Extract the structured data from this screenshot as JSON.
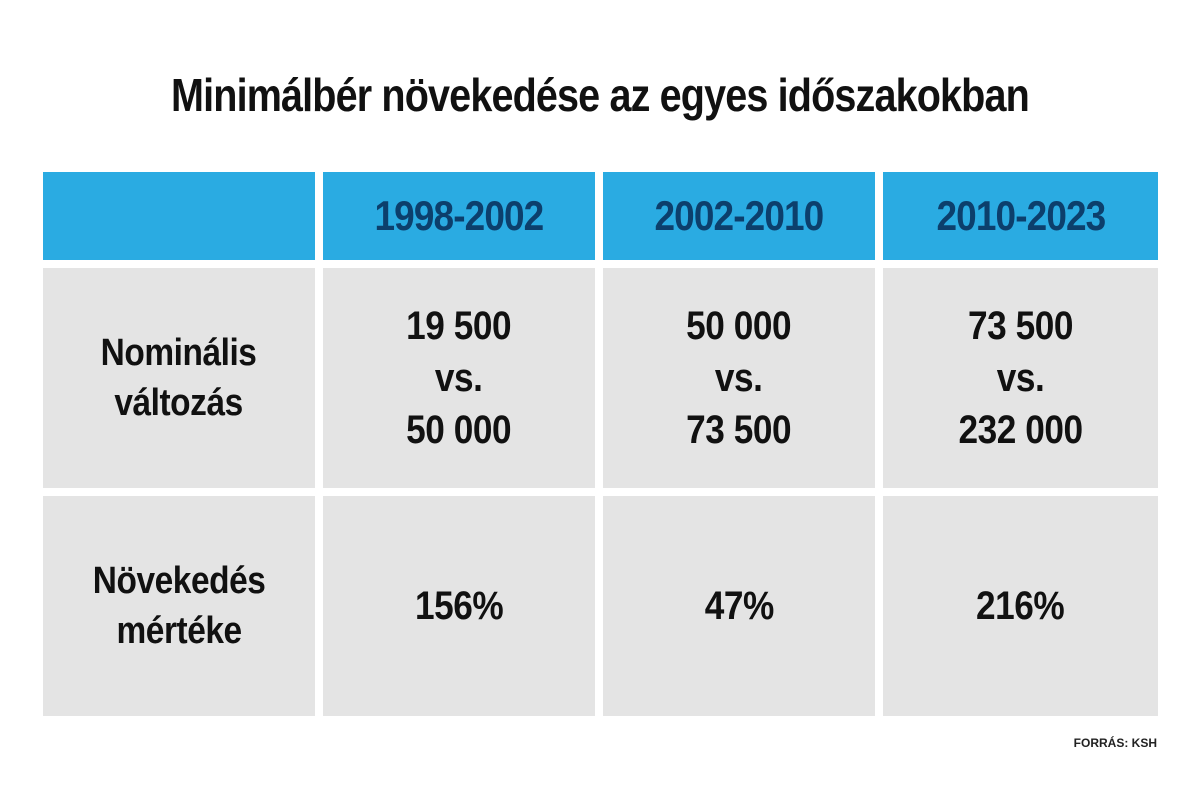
{
  "title": "Minimálbér növekedése az egyes időszakokban",
  "source": "FORRÁS: KSH",
  "colors": {
    "header_bg": "#2aabe2",
    "header_text": "#0c3f6c",
    "cell_bg": "#e4e4e4",
    "text": "#111111"
  },
  "chart_data": {
    "type": "table",
    "title": "Minimálbér növekedése az egyes időszakokban",
    "columns": [
      "",
      "1998-2002",
      "2002-2010",
      "2010-2023"
    ],
    "rows": [
      {
        "label": [
          "Nominális",
          "változás"
        ],
        "cells": [
          [
            "19 500",
            "vs.",
            "50 000"
          ],
          [
            "50 000",
            "vs.",
            "73 500"
          ],
          [
            "73 500",
            "vs.",
            "232 000"
          ]
        ]
      },
      {
        "label": [
          "Növekedés",
          "mértéke"
        ],
        "cells": [
          "156%",
          "47%",
          "216%"
        ]
      }
    ],
    "source": "FORRÁS: KSH"
  }
}
